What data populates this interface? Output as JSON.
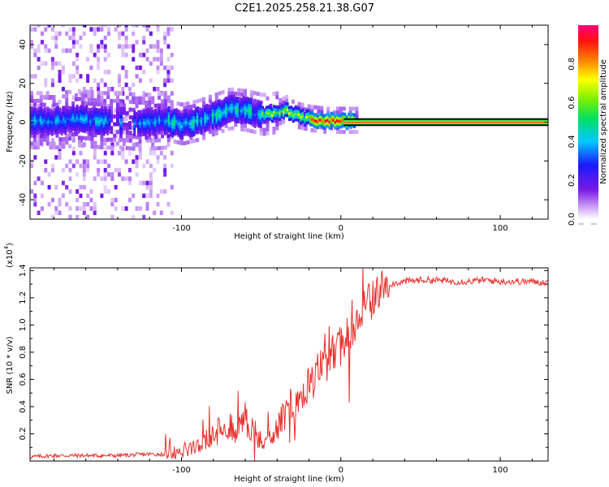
{
  "title": "C2E1.2025.258.21.38.G07",
  "chart_data": [
    {
      "type": "heatmap",
      "panel": "top",
      "xlabel": "Height of straight line (km)",
      "ylabel": "Frequency (Hz)",
      "xlim": [
        -195,
        130
      ],
      "ylim": [
        -50,
        50
      ],
      "xticks": [
        -100,
        0,
        100
      ],
      "yticks": [
        -40,
        -20,
        0,
        20,
        40
      ],
      "xtick_labels": [
        "-100",
        "0",
        "100"
      ],
      "ytick_labels": [
        "-40",
        "-20",
        "0",
        "20",
        "40"
      ],
      "grid": false,
      "main_signal": {
        "description_units": "frequency center (Hz) vs height (km)",
        "x": [
          -195,
          -180,
          -165,
          -150,
          -140,
          -125,
          -110,
          -100,
          -90,
          -80,
          -70,
          -60,
          -50,
          -40,
          -35,
          -30,
          -20,
          -10,
          0,
          10,
          50,
          100,
          130
        ],
        "y": [
          0,
          0,
          1,
          0,
          0,
          -1,
          0,
          -2,
          0,
          3,
          6,
          5,
          3,
          4,
          6,
          3,
          1,
          0,
          0,
          0,
          0,
          0,
          0
        ]
      },
      "noise_region_x": [
        -195,
        -107
      ],
      "colorbar": {
        "label": "Normalized spectral amplitude",
        "range": [
          0,
          1
        ],
        "ticks": [
          0.0,
          0.2,
          0.4,
          0.6,
          0.8
        ],
        "tick_labels": [
          "0.0",
          "0.2",
          "0.4",
          "0.6",
          "0.8"
        ]
      }
    },
    {
      "type": "line",
      "panel": "bottom",
      "xlabel": "Height of straight line (km)",
      "ylabel": "SNR (10 * v/v)",
      "scale_label": "(x10",
      "scale_exp": "4",
      "scale_close": ")",
      "xlim": [
        -195,
        130
      ],
      "ylim": [
        0,
        1.42
      ],
      "xticks": [
        -100,
        0,
        100
      ],
      "yticks": [
        0.2,
        0.4,
        0.6,
        0.8,
        1.0,
        1.2,
        1.4
      ],
      "xtick_labels": [
        "-100",
        "0",
        "100"
      ],
      "ytick_labels": [
        "0.2",
        "0.4",
        "0.6",
        "0.8",
        "1.0",
        "1.2",
        "1.4"
      ],
      "series": [
        {
          "name": "SNR",
          "color": "#e8302c",
          "x": [
            -195,
            -180,
            -160,
            -140,
            -120,
            -110,
            -100,
            -95,
            -90,
            -85,
            -80,
            -75,
            -70,
            -65,
            -60,
            -55,
            -50,
            -45,
            -40,
            -35,
            -30,
            -25,
            -20,
            -15,
            -10,
            -5,
            0,
            5,
            10,
            15,
            20,
            25,
            30,
            40,
            50,
            60,
            70,
            80,
            90,
            100,
            110,
            120,
            130
          ],
          "y": [
            0.03,
            0.04,
            0.04,
            0.04,
            0.05,
            0.05,
            0.07,
            0.1,
            0.13,
            0.16,
            0.2,
            0.24,
            0.26,
            0.22,
            0.33,
            0.22,
            0.14,
            0.18,
            0.25,
            0.33,
            0.42,
            0.5,
            0.55,
            0.65,
            0.72,
            0.78,
            0.85,
            0.95,
            1.05,
            1.12,
            1.2,
            1.26,
            1.3,
            1.32,
            1.33,
            1.33,
            1.32,
            1.32,
            1.33,
            1.32,
            1.32,
            1.32,
            1.31
          ]
        }
      ]
    }
  ]
}
